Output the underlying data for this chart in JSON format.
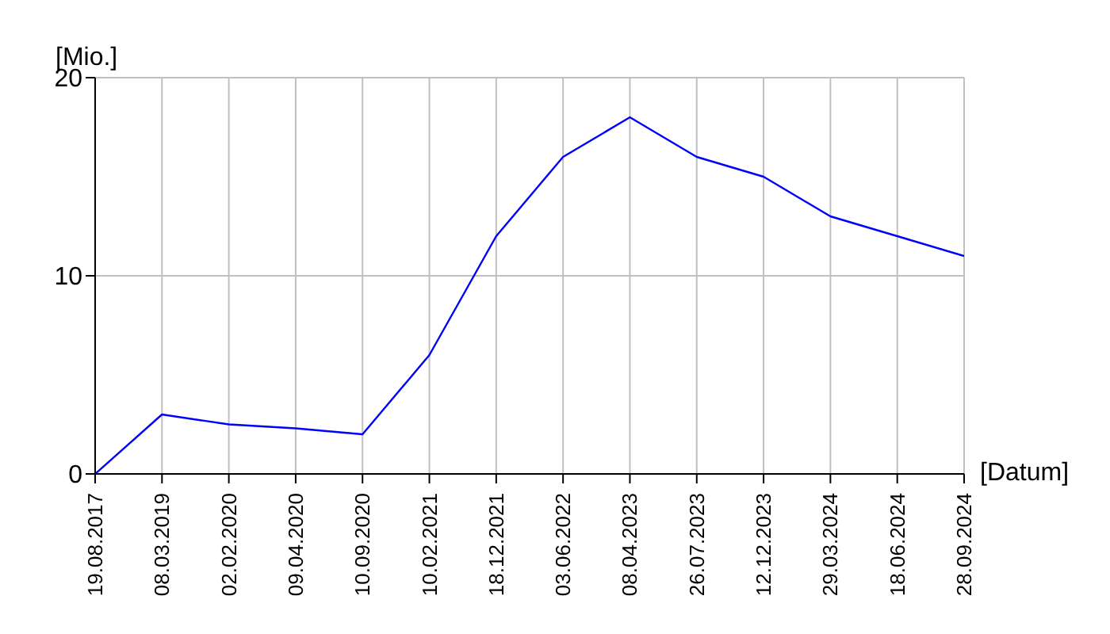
{
  "chart_data": {
    "type": "line",
    "ylabel": "[Mio.]",
    "xlabel": "[Datum]",
    "categories": [
      "19.08.2017",
      "08.03.2019",
      "02.02.2020",
      "09.04.2020",
      "10.09.2020",
      "10.02.2021",
      "18.12.2021",
      "03.06.2022",
      "08.04.2023",
      "26.07.2023",
      "12.12.2023",
      "29.03.2024",
      "18.06.2024",
      "28.09.2024"
    ],
    "series": [
      {
        "color": "#0000ff",
        "values": [
          0,
          3,
          2.5,
          2.3,
          2,
          6,
          12,
          16,
          18,
          16,
          15,
          13,
          12,
          11
        ]
      }
    ],
    "ylim": [
      0,
      20
    ],
    "yticks": [
      0,
      10,
      20
    ],
    "grid": true,
    "legend": false,
    "marker": "none",
    "line_style": "solid"
  }
}
